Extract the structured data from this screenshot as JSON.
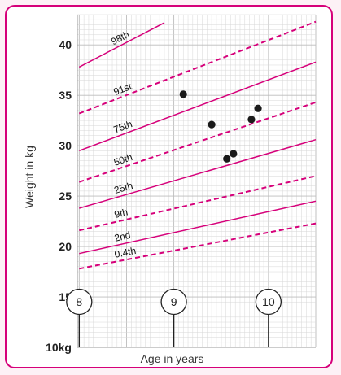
{
  "chart_data": {
    "type": "line",
    "title": "",
    "xlabel": "Age in years",
    "ylabel": "Weight in kg",
    "xlim": [
      7.98,
      10.5
    ],
    "ylim": [
      10,
      43
    ],
    "y_ticks": [
      "40",
      "35",
      "30",
      "25",
      "20",
      "15",
      "10kg"
    ],
    "y_tick_values": [
      40,
      35,
      30,
      25,
      20,
      15,
      10
    ],
    "x_ticks": [
      "8",
      "9",
      "10"
    ],
    "x_tick_values": [
      8,
      9,
      10
    ],
    "grid": true,
    "colors": {
      "curve": "#d6007a",
      "frame": "#d6007a",
      "grid": "#d7d7d7",
      "point": "#1a1a1a"
    },
    "series": [
      {
        "name": "98th",
        "style": "solid",
        "x": [
          8,
          8.9
        ],
        "y": [
          37.8,
          42.2
        ]
      },
      {
        "name": "91st",
        "style": "dashed",
        "x": [
          8,
          10.5
        ],
        "y": [
          33.2,
          42.3
        ]
      },
      {
        "name": "75th",
        "style": "solid",
        "x": [
          8,
          10.5
        ],
        "y": [
          29.5,
          38.3
        ]
      },
      {
        "name": "50th",
        "style": "dashed",
        "x": [
          8,
          10.5
        ],
        "y": [
          26.4,
          34.3
        ]
      },
      {
        "name": "25th",
        "style": "solid",
        "x": [
          8,
          10.5
        ],
        "y": [
          23.8,
          30.6
        ]
      },
      {
        "name": "9th",
        "style": "dashed",
        "x": [
          8,
          10.5
        ],
        "y": [
          21.6,
          27.0
        ]
      },
      {
        "name": "2nd",
        "style": "solid",
        "x": [
          8,
          10.5
        ],
        "y": [
          19.3,
          24.5
        ]
      },
      {
        "name": "0.4th",
        "style": "dashed",
        "x": [
          8,
          10.5
        ],
        "y": [
          17.8,
          22.3
        ]
      }
    ],
    "points": [
      {
        "x": 9.1,
        "y": 35.1
      },
      {
        "x": 9.4,
        "y": 32.1
      },
      {
        "x": 9.56,
        "y": 28.7
      },
      {
        "x": 9.63,
        "y": 29.2
      },
      {
        "x": 9.82,
        "y": 32.6
      },
      {
        "x": 9.89,
        "y": 33.7
      }
    ]
  }
}
